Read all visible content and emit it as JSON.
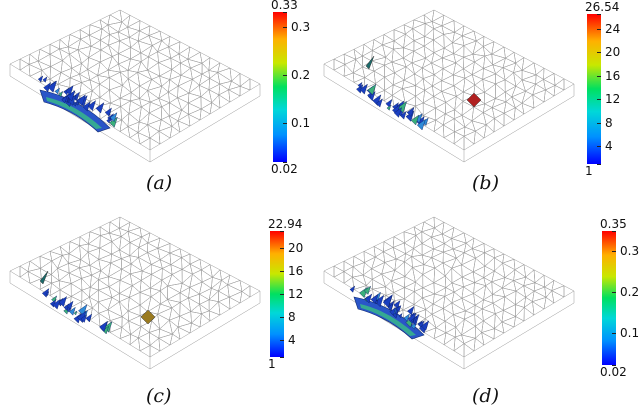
{
  "panels": [
    {
      "caption": "(a)",
      "colorbar": {
        "ticks": [
          "0.33",
          "0.3",
          "0.2",
          "0.1",
          "0.02"
        ],
        "min": 0.02,
        "max": 0.33
      }
    },
    {
      "caption": "(b)",
      "colorbar": {
        "ticks": [
          "26.54",
          "24",
          "20",
          "16",
          "12",
          "8",
          "4",
          "1"
        ],
        "min": 1,
        "max": 26.54
      }
    },
    {
      "caption": "(c)",
      "colorbar": {
        "ticks": [
          "22.94",
          "20",
          "16",
          "12",
          "8",
          "4",
          "1"
        ],
        "min": 1,
        "max": 22.94
      }
    },
    {
      "caption": "(d)",
      "colorbar": {
        "ticks": [
          "0.35",
          "0.3",
          "0.2",
          "0.1",
          "0.02"
        ],
        "min": 0.02,
        "max": 0.35
      }
    }
  ]
}
